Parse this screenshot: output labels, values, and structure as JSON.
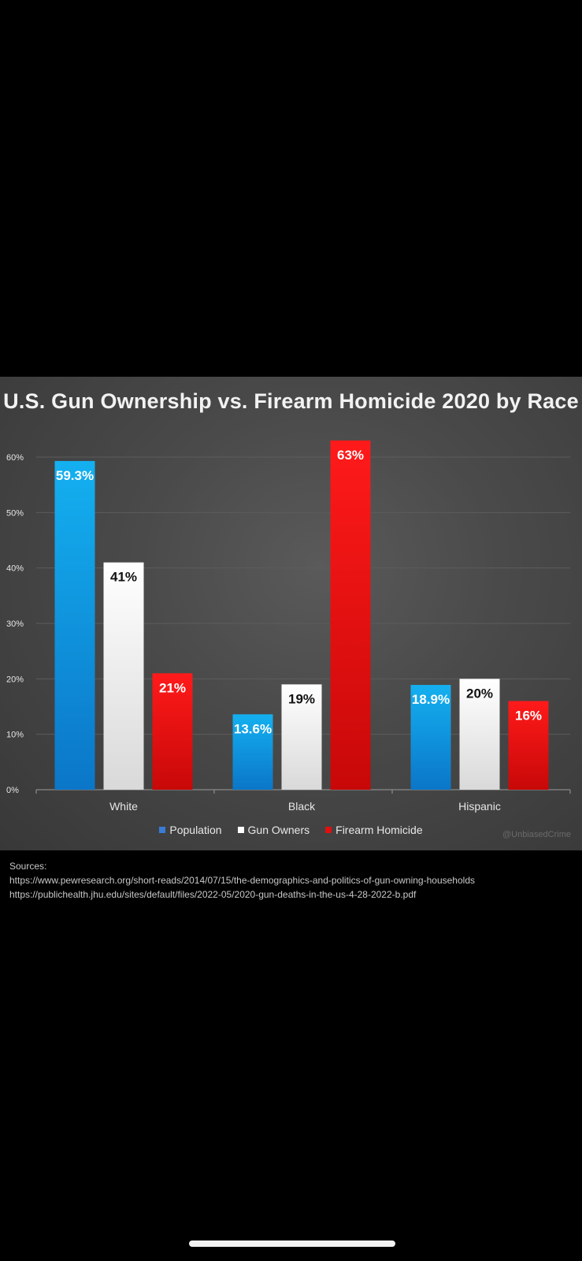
{
  "chart_data": {
    "type": "bar",
    "title": "U.S. Gun Ownership vs. Firearm Homicide 2020 by Race",
    "categories": [
      "White",
      "Black",
      "Hispanic"
    ],
    "series": [
      {
        "name": "Population",
        "values": [
          59.3,
          13.6,
          18.9
        ],
        "labels": [
          "59.3%",
          "13.6%",
          "18.9%"
        ],
        "color": "#1aa3e8",
        "label_color": "#ffffff"
      },
      {
        "name": "Gun Owners",
        "values": [
          41,
          19,
          20
        ],
        "labels": [
          "41%",
          "19%",
          "20%"
        ],
        "color": "#f2f2f2",
        "label_color": "#111111"
      },
      {
        "name": "Firearm Homicide",
        "values": [
          21,
          63,
          16
        ],
        "labels": [
          "21%",
          "63%",
          "16%"
        ],
        "color": "#e01010",
        "label_color": "#ffffff"
      }
    ],
    "yticks": [
      "0%",
      "10%",
      "20%",
      "30%",
      "40%",
      "50%",
      "60%"
    ],
    "ylim": [
      0,
      60
    ],
    "legend_position": "bottom",
    "grid": true
  },
  "legend": [
    {
      "label": "Population",
      "color": "#3a7bd5"
    },
    {
      "label": "Gun Owners",
      "color": "#ffffff"
    },
    {
      "label": "Firearm Homicide",
      "color": "#e01010"
    }
  ],
  "watermark": "@UnbiasedCrime",
  "sources": {
    "heading": "Sources:",
    "lines": [
      "https://www.pewresearch.org/short-reads/2014/07/15/the-demographics-and-politics-of-gun-owning-households",
      "https://publichealth.jhu.edu/sites/default/files/2022-05/2020-gun-deaths-in-the-us-4-28-2022-b.pdf"
    ]
  }
}
